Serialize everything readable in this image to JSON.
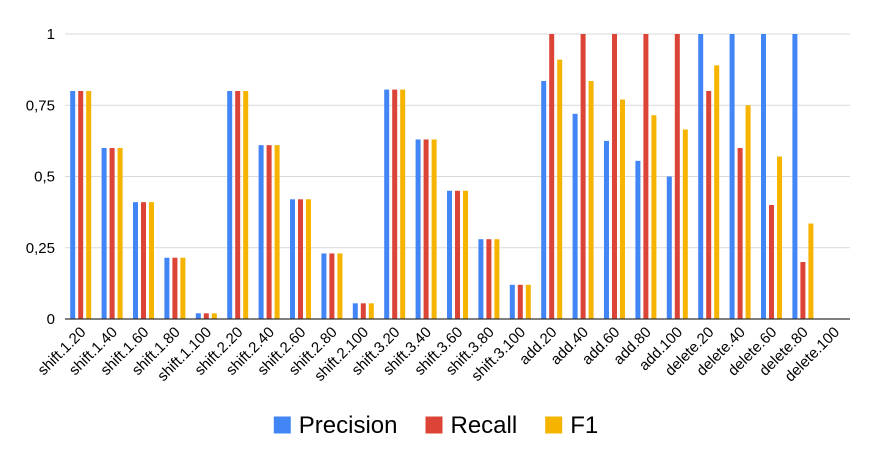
{
  "chart_data": {
    "type": "bar",
    "categories": [
      "shift.1.20",
      "shift.1.40",
      "shift.1.60",
      "shift.1.80",
      "shift.1.100",
      "shift.2.20",
      "shift.2.40",
      "shift.2.60",
      "shift.2.80",
      "shift.2.100",
      "shift.3.20",
      "shift.3.40",
      "shift.3.60",
      "shift.3.80",
      "shift.3.100",
      "add.20",
      "add.40",
      "add.60",
      "add.80",
      "add.100",
      "delete.20",
      "delete.40",
      "delete.60",
      "delete.80",
      "delete.100"
    ],
    "series": [
      {
        "name": "Precision",
        "color": "#4285f4",
        "values": [
          0.8,
          0.6,
          0.41,
          0.215,
          0.02,
          0.8,
          0.61,
          0.42,
          0.23,
          0.055,
          0.805,
          0.63,
          0.45,
          0.28,
          0.12,
          0.835,
          0.72,
          0.625,
          0.555,
          0.5,
          1.0,
          1.0,
          1.0,
          1.0,
          0
        ]
      },
      {
        "name": "Recall",
        "color": "#db4437",
        "values": [
          0.8,
          0.6,
          0.41,
          0.215,
          0.02,
          0.8,
          0.61,
          0.42,
          0.23,
          0.055,
          0.805,
          0.63,
          0.45,
          0.28,
          0.12,
          1.0,
          1.0,
          1.0,
          1.0,
          1.0,
          0.8,
          0.6,
          0.4,
          0.2,
          0
        ]
      },
      {
        "name": "F1",
        "color": "#f4b400",
        "values": [
          0.8,
          0.6,
          0.41,
          0.215,
          0.02,
          0.8,
          0.61,
          0.42,
          0.23,
          0.055,
          0.805,
          0.63,
          0.45,
          0.28,
          0.12,
          0.91,
          0.835,
          0.77,
          0.715,
          0.665,
          0.89,
          0.75,
          0.57,
          0.335,
          0
        ]
      }
    ],
    "y_ticks": [
      0,
      0.25,
      0.5,
      0.75,
      1
    ],
    "y_tick_labels": [
      "0",
      "0,25",
      "0,5",
      "0,75",
      "1"
    ],
    "ylim": [
      0,
      1
    ],
    "grid": true,
    "legend": "bottom-center"
  }
}
